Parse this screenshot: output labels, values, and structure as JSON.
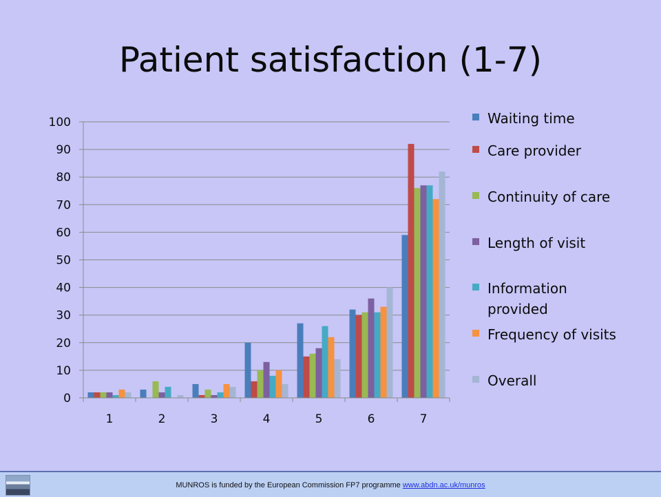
{
  "slide": {
    "title": "Patient satisfaction (1-7)"
  },
  "footer": {
    "text": "MUNROS  is funded by the European Commission  FP7 programme ",
    "link": "www.abdn.ac.uk/munros"
  },
  "chart_data": {
    "type": "bar",
    "title": "Patient satisfaction (1-7)",
    "categories": [
      "1",
      "2",
      "3",
      "4",
      "5",
      "6",
      "7"
    ],
    "ylim": [
      0,
      100
    ],
    "yticks": [
      0,
      10,
      20,
      30,
      40,
      50,
      60,
      70,
      80,
      90,
      100
    ],
    "grid": true,
    "legend": "right",
    "series": [
      {
        "name": "Waiting time",
        "color": "#4a7ebb",
        "values": [
          2,
          3,
          5,
          20,
          27,
          32,
          59
        ]
      },
      {
        "name": "Care provider",
        "color": "#be4b48",
        "values": [
          2,
          0,
          1,
          6,
          15,
          30,
          92
        ]
      },
      {
        "name": "Continuity of care",
        "color": "#98b954",
        "values": [
          2,
          6,
          3,
          10,
          16,
          31,
          76
        ]
      },
      {
        "name": "Length of visit",
        "color": "#7d60a0",
        "values": [
          2,
          2,
          1,
          13,
          18,
          36,
          77
        ]
      },
      {
        "name": "Information provided",
        "color": "#46aac5",
        "values": [
          1,
          4,
          2,
          8,
          26,
          31,
          77
        ]
      },
      {
        "name": "Frequency of visits",
        "color": "#f69240",
        "values": [
          3,
          0,
          5,
          10,
          22,
          33,
          72
        ]
      },
      {
        "name": "Overall",
        "color": "#a5b6d4",
        "values": [
          2,
          1,
          4,
          5,
          14,
          40,
          82
        ]
      }
    ]
  }
}
